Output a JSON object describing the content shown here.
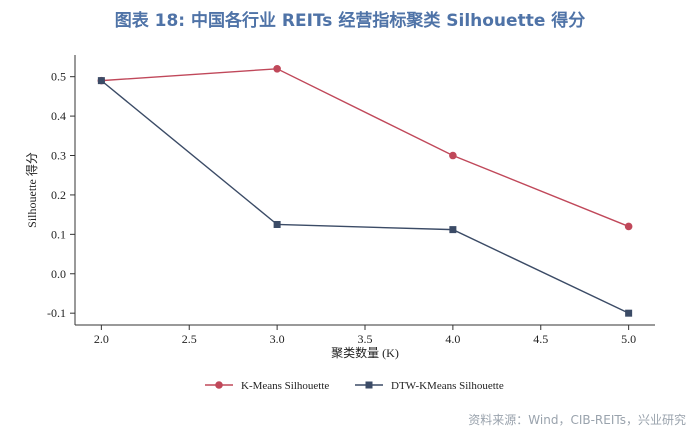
{
  "title": "图表 18: 中国各行业 REITs 经营指标聚类 Silhouette 得分",
  "source": "资料来源：Wind，CIB-REITs，兴业研究",
  "chart_data": {
    "type": "line",
    "xlabel": "聚类数量 (K)",
    "ylabel": "Silhouette 得分",
    "xlim": [
      1.85,
      5.15
    ],
    "ylim": [
      -0.13,
      0.555
    ],
    "x_ticks": [
      "2.0",
      "2.5",
      "3.0",
      "3.5",
      "4.0",
      "4.5",
      "5.0"
    ],
    "y_ticks": [
      "-0.1",
      "0.0",
      "0.1",
      "0.2",
      "0.3",
      "0.4",
      "0.5"
    ],
    "legend_position": "bottom",
    "series": [
      {
        "name": "K-Means Silhouette",
        "color": "#c0485a",
        "marker": "circle",
        "x": [
          2.0,
          3.0,
          4.0,
          5.0
        ],
        "y": [
          0.49,
          0.52,
          0.3,
          0.12
        ]
      },
      {
        "name": "DTW-KMeans Silhouette",
        "color": "#3b4b66",
        "marker": "square",
        "x": [
          2.0,
          3.0,
          4.0,
          5.0
        ],
        "y": [
          0.49,
          0.125,
          0.112,
          -0.1
        ]
      }
    ]
  }
}
